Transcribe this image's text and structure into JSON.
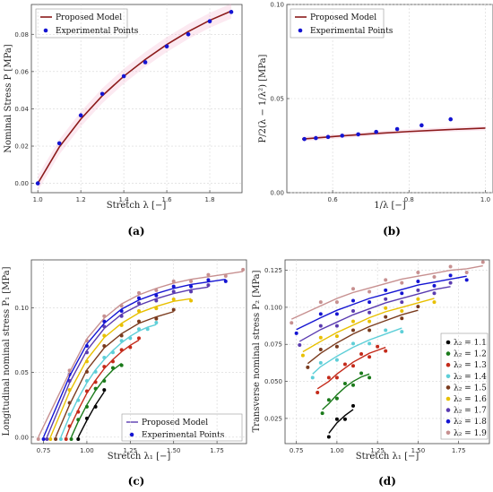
{
  "captions": [
    "(a)",
    "(b)",
    "(c)",
    "(d)"
  ],
  "colors": {
    "model_dark_red": "#8b1a1a",
    "points_blue": "#1414d2",
    "band_pink": "#f2a8c8"
  },
  "chart_data": [
    {
      "id": "a",
      "type": "scatter",
      "xlabel": "Stretch λ [−]",
      "ylabel": "Nominal Stress P [MPa]",
      "xlim": [
        0.97,
        1.95
      ],
      "ylim": [
        -0.005,
        0.096
      ],
      "xticks": [
        1.0,
        1.2,
        1.4,
        1.6,
        1.8
      ],
      "xtick_labels": [
        "1.0",
        "1.2",
        "1.4",
        "1.6",
        "1.8"
      ],
      "yticks": [
        0.0,
        0.02,
        0.04,
        0.06,
        0.08
      ],
      "ytick_labels": [
        "0.00",
        "0.02",
        "0.04",
        "0.06",
        "0.08"
      ],
      "grid": true,
      "legend_position": "top-left",
      "series": [
        {
          "name": "Proposed Model",
          "kind": "line",
          "color": "#8b1a1a",
          "x": [
            1.0,
            1.1,
            1.2,
            1.3,
            1.4,
            1.5,
            1.6,
            1.7,
            1.8,
            1.9
          ],
          "y": [
            0.0,
            0.0195,
            0.0345,
            0.047,
            0.0575,
            0.0665,
            0.0745,
            0.0815,
            0.0875,
            0.0925
          ]
        },
        {
          "name": "Experimental Points",
          "kind": "points",
          "color": "#1414d2",
          "x": [
            1.0,
            1.1,
            1.2,
            1.3,
            1.4,
            1.5,
            1.6,
            1.7,
            1.8,
            1.9
          ],
          "y": [
            0.0,
            0.0215,
            0.0365,
            0.048,
            0.0575,
            0.065,
            0.0735,
            0.08,
            0.087,
            0.092
          ]
        }
      ]
    },
    {
      "id": "b",
      "type": "scatter",
      "xlabel": "1/λ [−]",
      "ylabel": "P/2(λ − 1/λ²) [MPa]",
      "xlim": [
        0.48,
        1.02
      ],
      "ylim": [
        0.0,
        0.1
      ],
      "xticks": [
        0.6,
        0.8,
        1.0
      ],
      "xtick_labels": [
        "0.6",
        "0.8",
        "1.0"
      ],
      "yticks": [
        0.0,
        0.05,
        0.1
      ],
      "ytick_labels": [
        "0.00",
        "0.05",
        "0.10"
      ],
      "grid": true,
      "legend_position": "top-left",
      "series": [
        {
          "name": "Proposed Model",
          "kind": "line",
          "color": "#8b1a1a",
          "x": [
            0.52,
            0.6,
            0.7,
            0.8,
            0.9,
            1.0
          ],
          "y": [
            0.0285,
            0.0298,
            0.0313,
            0.0325,
            0.0335,
            0.0343
          ]
        },
        {
          "name": "Experimental Points",
          "kind": "points",
          "color": "#1414d2",
          "x": [
            0.526,
            0.556,
            0.588,
            0.625,
            0.667,
            0.714,
            0.769,
            0.833,
            0.909
          ],
          "y": [
            0.0285,
            0.029,
            0.0296,
            0.0303,
            0.031,
            0.0323,
            0.0338,
            0.0358,
            0.039
          ]
        }
      ]
    },
    {
      "id": "c",
      "type": "line",
      "xlabel": "Stretch λ₁ [−]",
      "ylabel": "Longitudinal nominal stress P₁ [MPa]",
      "xlim": [
        0.68,
        1.92
      ],
      "ylim": [
        -0.005,
        0.137
      ],
      "xticks": [
        0.75,
        1.0,
        1.25,
        1.5,
        1.75
      ],
      "xtick_labels": [
        "0.75",
        "1.00",
        "1.25",
        "1.50",
        "1.75"
      ],
      "yticks": [
        0.0,
        0.05,
        0.1
      ],
      "ytick_labels": [
        "0.00",
        "0.05",
        "0.10"
      ],
      "grid": true,
      "legend_position": "bottom-right",
      "legend": [
        "Proposed Model",
        "Experimental Points"
      ],
      "series": [
        {
          "lambda2": 1.1,
          "color": "#000000",
          "x": [
            0.95,
            1.0,
            1.05,
            1.1
          ],
          "y": [
            0.0,
            0.013,
            0.025,
            0.035
          ]
        },
        {
          "lambda2": 1.2,
          "color": "#1a7a1a",
          "x": [
            0.91,
            0.95,
            1.0,
            1.05,
            1.1,
            1.15,
            1.2
          ],
          "y": [
            0.0,
            0.012,
            0.025,
            0.036,
            0.045,
            0.052,
            0.057
          ]
        },
        {
          "lambda2": 1.3,
          "color": "#c42a1a",
          "x": [
            0.88,
            0.9,
            0.95,
            1.0,
            1.05,
            1.1,
            1.15,
            1.2,
            1.25,
            1.3
          ],
          "y": [
            0.0,
            0.007,
            0.021,
            0.034,
            0.044,
            0.053,
            0.06,
            0.066,
            0.071,
            0.075
          ]
        },
        {
          "lambda2": 1.4,
          "color": "#5ecfd8",
          "x": [
            0.85,
            0.9,
            0.95,
            1.0,
            1.05,
            1.1,
            1.15,
            1.2,
            1.25,
            1.3,
            1.35,
            1.4
          ],
          "y": [
            0.0,
            0.016,
            0.03,
            0.042,
            0.052,
            0.06,
            0.067,
            0.073,
            0.078,
            0.082,
            0.085,
            0.087
          ]
        },
        {
          "lambda2": 1.5,
          "color": "#7a3b1e",
          "x": [
            0.82,
            0.9,
            1.0,
            1.1,
            1.2,
            1.3,
            1.4,
            1.5
          ],
          "y": [
            0.0,
            0.025,
            0.052,
            0.069,
            0.08,
            0.088,
            0.093,
            0.097
          ]
        },
        {
          "lambda2": 1.6,
          "color": "#e8c000",
          "x": [
            0.79,
            0.9,
            1.0,
            1.1,
            1.2,
            1.3,
            1.4,
            1.5,
            1.6
          ],
          "y": [
            0.0,
            0.035,
            0.06,
            0.077,
            0.088,
            0.096,
            0.101,
            0.105,
            0.107
          ]
        },
        {
          "lambda2": 1.7,
          "color": "#5a3bb0",
          "x": [
            0.77,
            0.9,
            1.0,
            1.1,
            1.2,
            1.3,
            1.4,
            1.5,
            1.6,
            1.7
          ],
          "y": [
            0.0,
            0.042,
            0.067,
            0.084,
            0.095,
            0.102,
            0.107,
            0.111,
            0.114,
            0.116
          ]
        },
        {
          "lambda2": 1.8,
          "color": "#1414d2",
          "x": [
            0.75,
            0.9,
            1.0,
            1.1,
            1.2,
            1.3,
            1.4,
            1.5,
            1.6,
            1.7,
            1.8
          ],
          "y": [
            0.0,
            0.047,
            0.072,
            0.088,
            0.099,
            0.106,
            0.111,
            0.115,
            0.118,
            0.12,
            0.122
          ]
        },
        {
          "lambda2": 1.9,
          "color": "#c79090",
          "x": [
            0.72,
            0.9,
            1.0,
            1.1,
            1.2,
            1.3,
            1.4,
            1.5,
            1.6,
            1.7,
            1.8,
            1.9
          ],
          "y": [
            0.0,
            0.05,
            0.076,
            0.092,
            0.103,
            0.11,
            0.115,
            0.119,
            0.122,
            0.124,
            0.126,
            0.128
          ]
        }
      ]
    },
    {
      "id": "d",
      "type": "line",
      "xlabel": "Stretch λ₁ [−]",
      "ylabel": "Transverse nominal stress P₂ [MPa]",
      "xlim": [
        0.68,
        1.94
      ],
      "ylim": [
        0.008,
        0.132
      ],
      "xticks": [
        0.75,
        1.0,
        1.25,
        1.5,
        1.75
      ],
      "xtick_labels": [
        "0.75",
        "1.00",
        "1.25",
        "1.50",
        "1.75"
      ],
      "yticks": [
        0.025,
        0.05,
        0.075,
        0.1,
        0.125
      ],
      "ytick_labels": [
        "0.025",
        "0.050",
        "0.075",
        "0.100",
        "0.125"
      ],
      "grid": true,
      "legend_position": "right",
      "legend": [
        "λ₂ = 1.1",
        "λ₂ = 1.2",
        "λ₂ = 1.3",
        "λ₂ = 1.4",
        "λ₂ = 1.5",
        "λ₂ = 1.6",
        "λ₂ = 1.7",
        "λ₂ = 1.8",
        "λ₂ = 1.9"
      ],
      "series": [
        {
          "lambda2": 1.1,
          "color": "#000000",
          "x": [
            0.95,
            1.0,
            1.05,
            1.1
          ],
          "y": [
            0.015,
            0.022,
            0.027,
            0.031
          ]
        },
        {
          "lambda2": 1.2,
          "color": "#1a7a1a",
          "x": [
            0.91,
            0.95,
            1.0,
            1.05,
            1.1,
            1.15,
            1.2
          ],
          "y": [
            0.031,
            0.035,
            0.041,
            0.046,
            0.05,
            0.053,
            0.055
          ]
        },
        {
          "lambda2": 1.3,
          "color": "#c42a1a",
          "x": [
            0.88,
            0.95,
            1.0,
            1.05,
            1.1,
            1.15,
            1.2,
            1.25,
            1.3
          ],
          "y": [
            0.045,
            0.05,
            0.055,
            0.059,
            0.063,
            0.066,
            0.069,
            0.071,
            0.073
          ]
        },
        {
          "lambda2": 1.4,
          "color": "#5ecfd8",
          "x": [
            0.85,
            0.9,
            1.0,
            1.1,
            1.2,
            1.3,
            1.4
          ],
          "y": [
            0.055,
            0.06,
            0.067,
            0.073,
            0.078,
            0.082,
            0.086
          ]
        },
        {
          "lambda2": 1.5,
          "color": "#7a3b1e",
          "x": [
            0.82,
            0.9,
            1.0,
            1.1,
            1.2,
            1.3,
            1.4,
            1.5
          ],
          "y": [
            0.062,
            0.069,
            0.076,
            0.082,
            0.087,
            0.091,
            0.095,
            0.098
          ]
        },
        {
          "lambda2": 1.6,
          "color": "#e8c000",
          "x": [
            0.79,
            0.9,
            1.0,
            1.1,
            1.2,
            1.3,
            1.4,
            1.5,
            1.6
          ],
          "y": [
            0.07,
            0.077,
            0.083,
            0.088,
            0.093,
            0.097,
            0.1,
            0.103,
            0.106
          ]
        },
        {
          "lambda2": 1.7,
          "color": "#5a3bb0",
          "x": [
            0.77,
            0.9,
            1.0,
            1.1,
            1.2,
            1.3,
            1.4,
            1.5,
            1.6,
            1.7
          ],
          "y": [
            0.077,
            0.085,
            0.09,
            0.095,
            0.099,
            0.103,
            0.106,
            0.109,
            0.112,
            0.114
          ]
        },
        {
          "lambda2": 1.8,
          "color": "#1414d2",
          "x": [
            0.75,
            0.9,
            1.0,
            1.1,
            1.2,
            1.3,
            1.4,
            1.5,
            1.6,
            1.7,
            1.8
          ],
          "y": [
            0.085,
            0.093,
            0.098,
            0.102,
            0.106,
            0.109,
            0.112,
            0.115,
            0.117,
            0.119,
            0.121
          ]
        },
        {
          "lambda2": 1.9,
          "color": "#c79090",
          "x": [
            0.72,
            0.9,
            1.0,
            1.1,
            1.2,
            1.3,
            1.4,
            1.5,
            1.6,
            1.7,
            1.8,
            1.9
          ],
          "y": [
            0.092,
            0.101,
            0.106,
            0.11,
            0.113,
            0.116,
            0.119,
            0.121,
            0.123,
            0.125,
            0.126,
            0.128
          ]
        }
      ]
    }
  ]
}
